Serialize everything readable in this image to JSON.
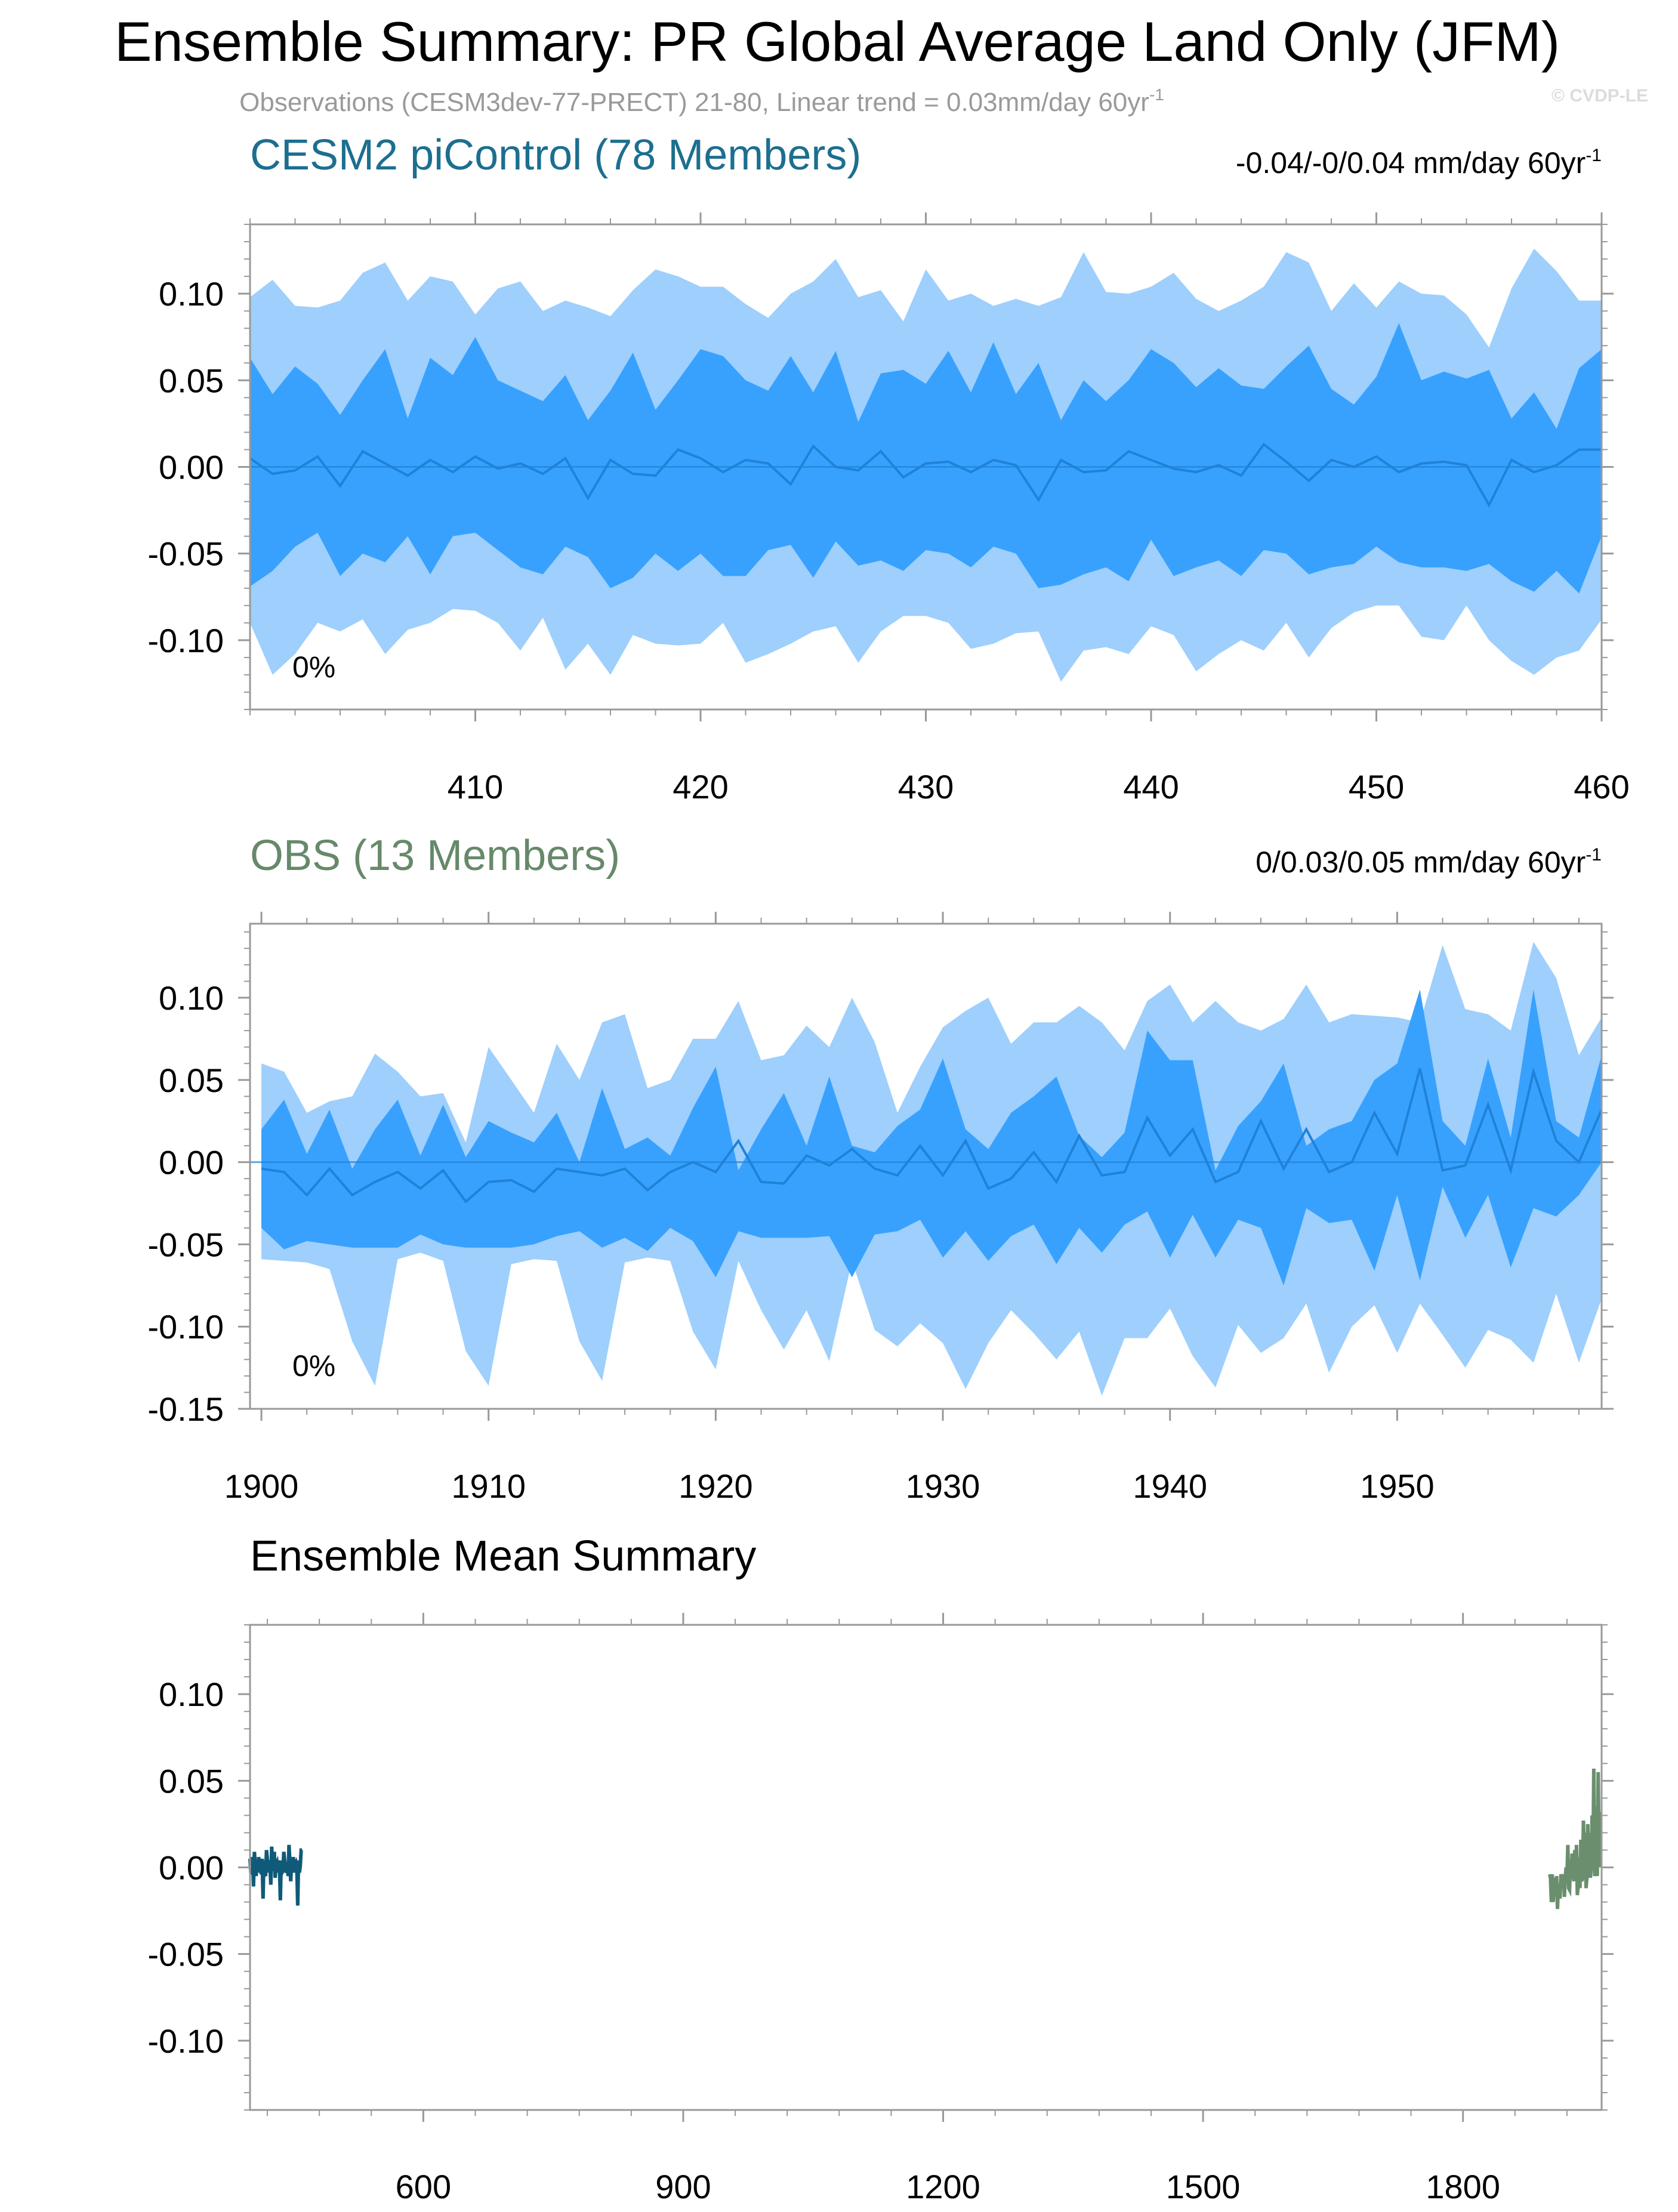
{
  "title": "Ensemble Summary: PR Global Average Land Only (JFM)",
  "subtitle": "Observations (CESM3dev-77-PRECT) 21-80, Linear trend = 0.03mm/day 60yr",
  "subtitle_sup": "-1",
  "watermark": "© CVDP-LE",
  "colors": {
    "outer_band": "#9ecffd",
    "inner_band": "#38a1fe",
    "mean_line": "#1f82d9",
    "zero_line": "#1f82d9",
    "cesm_title": "#1c6f8f",
    "obs_title": "#66896a",
    "cesm_mean": "#0f5a78",
    "obs_mean": "#6b8f6e",
    "axis": "#999999",
    "text": "#000000",
    "subtitle": "#9a9a9a"
  },
  "chart_data": [
    {
      "type": "area",
      "id": "cesm",
      "title": "CESM2 piControl (78 Members)",
      "trend_label": "-0.04/-0/0.04 mm/day 60yr",
      "trend_sup": "-1",
      "percent_label": "0%",
      "xlabel": "",
      "ylabel": "",
      "xlim": [
        400,
        460
      ],
      "ylim": [
        -0.14,
        0.14
      ],
      "x_ticks": [
        410,
        420,
        430,
        440,
        450,
        460
      ],
      "y_ticks": [
        0.1,
        0.05,
        0.0,
        -0.05,
        -0.1
      ],
      "y_tick_labels": [
        "0.10",
        "0.05",
        "0.00",
        "-0.05",
        "-0.10"
      ],
      "x": [
        400,
        401,
        402,
        403,
        404,
        405,
        406,
        407,
        408,
        409,
        410,
        411,
        412,
        413,
        414,
        415,
        416,
        417,
        418,
        419,
        420,
        421,
        422,
        423,
        424,
        425,
        426,
        427,
        428,
        429,
        430,
        431,
        432,
        433,
        434,
        435,
        436,
        437,
        438,
        439,
        440,
        441,
        442,
        443,
        444,
        445,
        446,
        447,
        448,
        449,
        450,
        451,
        452,
        453,
        454,
        455,
        456,
        457,
        458,
        459,
        460
      ],
      "series": [
        {
          "name": "max",
          "values": [
            0.098,
            0.108,
            0.093,
            0.092,
            0.096,
            0.112,
            0.118,
            0.096,
            0.11,
            0.107,
            0.088,
            0.103,
            0.107,
            0.09,
            0.096,
            0.092,
            0.087,
            0.102,
            0.114,
            0.11,
            0.104,
            0.104,
            0.094,
            0.086,
            0.1,
            0.107,
            0.12,
            0.098,
            0.102,
            0.084,
            0.114,
            0.096,
            0.1,
            0.093,
            0.097,
            0.093,
            0.098,
            0.124,
            0.101,
            0.1,
            0.104,
            0.112,
            0.097,
            0.09,
            0.096,
            0.104,
            0.124,
            0.118,
            0.09,
            0.106,
            0.092,
            0.107,
            0.1,
            0.099,
            0.088,
            0.069,
            0.103,
            0.126,
            0.113,
            0.096,
            0.096
          ]
        },
        {
          "name": "p90",
          "values": [
            0.063,
            0.042,
            0.058,
            0.048,
            0.03,
            0.05,
            0.068,
            0.028,
            0.063,
            0.053,
            0.075,
            0.05,
            0.044,
            0.038,
            0.053,
            0.027,
            0.044,
            0.066,
            0.033,
            0.05,
            0.068,
            0.064,
            0.05,
            0.044,
            0.064,
            0.043,
            0.067,
            0.026,
            0.054,
            0.056,
            0.048,
            0.067,
            0.043,
            0.072,
            0.042,
            0.06,
            0.027,
            0.05,
            0.038,
            0.05,
            0.068,
            0.06,
            0.046,
            0.057,
            0.047,
            0.045,
            0.058,
            0.07,
            0.045,
            0.036,
            0.052,
            0.083,
            0.05,
            0.055,
            0.051,
            0.056,
            0.028,
            0.043,
            0.022,
            0.057,
            0.068
          ]
        },
        {
          "name": "mean",
          "values": [
            0.005,
            -0.004,
            -0.002,
            0.006,
            -0.011,
            0.009,
            0.002,
            -0.005,
            0.004,
            -0.003,
            0.006,
            -0.001,
            0.002,
            -0.004,
            0.005,
            -0.018,
            0.004,
            -0.004,
            -0.005,
            0.01,
            0.005,
            -0.003,
            0.004,
            0.002,
            -0.01,
            0.012,
            0.0,
            -0.002,
            0.009,
            -0.006,
            0.002,
            0.003,
            -0.003,
            0.004,
            0.001,
            -0.019,
            0.004,
            -0.003,
            -0.002,
            0.009,
            0.004,
            -0.001,
            -0.003,
            0.001,
            -0.005,
            0.013,
            0.003,
            -0.008,
            0.004,
            0.0,
            0.006,
            -0.003,
            0.002,
            0.003,
            0.001,
            -0.022,
            0.004,
            -0.003,
            0.001,
            0.01,
            0.01
          ]
        },
        {
          "name": "p10",
          "values": [
            -0.069,
            -0.06,
            -0.046,
            -0.038,
            -0.063,
            -0.05,
            -0.055,
            -0.04,
            -0.062,
            -0.04,
            -0.038,
            -0.048,
            -0.058,
            -0.062,
            -0.046,
            -0.052,
            -0.07,
            -0.064,
            -0.05,
            -0.06,
            -0.05,
            -0.063,
            -0.063,
            -0.048,
            -0.045,
            -0.064,
            -0.043,
            -0.057,
            -0.054,
            -0.06,
            -0.048,
            -0.05,
            -0.058,
            -0.046,
            -0.05,
            -0.07,
            -0.068,
            -0.062,
            -0.058,
            -0.066,
            -0.042,
            -0.063,
            -0.058,
            -0.054,
            -0.063,
            -0.048,
            -0.05,
            -0.062,
            -0.058,
            -0.056,
            -0.046,
            -0.055,
            -0.058,
            -0.058,
            -0.06,
            -0.056,
            -0.066,
            -0.072,
            -0.06,
            -0.073,
            -0.04
          ]
        },
        {
          "name": "min",
          "values": [
            -0.09,
            -0.12,
            -0.108,
            -0.09,
            -0.095,
            -0.088,
            -0.108,
            -0.094,
            -0.09,
            -0.082,
            -0.083,
            -0.09,
            -0.106,
            -0.087,
            -0.117,
            -0.102,
            -0.12,
            -0.097,
            -0.102,
            -0.103,
            -0.102,
            -0.09,
            -0.113,
            -0.108,
            -0.102,
            -0.095,
            -0.092,
            -0.113,
            -0.095,
            -0.086,
            -0.086,
            -0.09,
            -0.105,
            -0.102,
            -0.096,
            -0.095,
            -0.124,
            -0.106,
            -0.104,
            -0.108,
            -0.092,
            -0.097,
            -0.118,
            -0.108,
            -0.1,
            -0.106,
            -0.09,
            -0.11,
            -0.093,
            -0.084,
            -0.08,
            -0.08,
            -0.098,
            -0.1,
            -0.08,
            -0.1,
            -0.112,
            -0.12,
            -0.11,
            -0.106,
            -0.088
          ]
        }
      ]
    },
    {
      "type": "area",
      "id": "obs",
      "title": "OBS (13 Members)",
      "trend_label": "0/0.03/0.05 mm/day 60yr",
      "trend_sup": "-1",
      "percent_label": "0%",
      "xlabel": "",
      "ylabel": "",
      "xlim": [
        1899.5,
        1959
      ],
      "ylim": [
        -0.15,
        0.145
      ],
      "x_ticks": [
        1900,
        1910,
        1920,
        1930,
        1940,
        1950
      ],
      "y_ticks": [
        0.1,
        0.05,
        0.0,
        -0.05,
        -0.1,
        -0.15
      ],
      "y_tick_labels": [
        "0.10",
        "0.05",
        "0.00",
        "-0.05",
        "-0.10",
        "-0.15"
      ],
      "x": [
        1900,
        1901,
        1902,
        1903,
        1904,
        1905,
        1906,
        1907,
        1908,
        1909,
        1910,
        1911,
        1912,
        1913,
        1914,
        1915,
        1916,
        1917,
        1918,
        1919,
        1920,
        1921,
        1922,
        1923,
        1924,
        1925,
        1926,
        1927,
        1928,
        1929,
        1930,
        1931,
        1932,
        1933,
        1934,
        1935,
        1936,
        1937,
        1938,
        1939,
        1940,
        1941,
        1942,
        1943,
        1944,
        1945,
        1946,
        1947,
        1948,
        1949,
        1950,
        1951,
        1952,
        1953,
        1954,
        1955,
        1956,
        1957,
        1958,
        1959
      ],
      "series": [
        {
          "name": "max",
          "values": [
            0.06,
            0.055,
            0.03,
            0.037,
            0.04,
            0.066,
            0.055,
            0.04,
            0.042,
            0.012,
            0.07,
            0.05,
            0.03,
            0.072,
            0.05,
            0.085,
            0.09,
            0.045,
            0.05,
            0.075,
            0.075,
            0.098,
            0.062,
            0.065,
            0.083,
            0.07,
            0.1,
            0.073,
            0.03,
            0.058,
            0.082,
            0.092,
            0.1,
            0.072,
            0.085,
            0.085,
            0.095,
            0.085,
            0.068,
            0.098,
            0.108,
            0.085,
            0.098,
            0.085,
            0.08,
            0.087,
            0.108,
            0.085,
            0.09,
            0.089,
            0.088,
            0.085,
            0.132,
            0.093,
            0.09,
            0.08,
            0.134,
            0.112,
            0.065,
            0.088
          ]
        },
        {
          "name": "p90",
          "values": [
            0.02,
            0.038,
            0.005,
            0.032,
            -0.004,
            0.02,
            0.038,
            0.004,
            0.035,
            0.003,
            0.025,
            0.018,
            0.012,
            0.03,
            0.0,
            0.045,
            0.008,
            0.015,
            0.004,
            0.033,
            0.058,
            -0.005,
            0.02,
            0.042,
            0.01,
            0.052,
            0.01,
            0.006,
            0.022,
            0.032,
            0.063,
            0.02,
            0.008,
            0.03,
            0.04,
            0.052,
            0.016,
            0.003,
            0.018,
            0.08,
            0.062,
            0.062,
            -0.005,
            0.022,
            0.037,
            0.06,
            0.01,
            0.02,
            0.025,
            0.05,
            0.06,
            0.105,
            0.025,
            0.01,
            0.063,
            0.015,
            0.105,
            0.025,
            0.015,
            0.065
          ]
        },
        {
          "name": "mean",
          "values": [
            -0.004,
            -0.006,
            -0.02,
            -0.004,
            -0.02,
            -0.012,
            -0.006,
            -0.016,
            -0.005,
            -0.024,
            -0.012,
            -0.011,
            -0.018,
            -0.004,
            -0.006,
            -0.008,
            -0.004,
            -0.017,
            -0.006,
            0.0,
            -0.006,
            0.013,
            -0.012,
            -0.013,
            0.004,
            -0.002,
            0.008,
            -0.004,
            -0.008,
            0.01,
            -0.008,
            0.013,
            -0.016,
            -0.01,
            0.006,
            -0.012,
            0.016,
            -0.008,
            -0.006,
            0.027,
            0.004,
            0.02,
            -0.012,
            -0.006,
            0.025,
            -0.004,
            0.02,
            -0.006,
            0.0,
            0.03,
            0.005,
            0.057,
            -0.005,
            -0.002,
            0.035,
            -0.005,
            0.055,
            0.013,
            0.0,
            0.032
          ]
        },
        {
          "name": "p10",
          "values": [
            -0.04,
            -0.053,
            -0.048,
            -0.05,
            -0.052,
            -0.052,
            -0.052,
            -0.044,
            -0.05,
            -0.052,
            -0.052,
            -0.052,
            -0.05,
            -0.045,
            -0.042,
            -0.052,
            -0.046,
            -0.054,
            -0.04,
            -0.048,
            -0.07,
            -0.042,
            -0.046,
            -0.046,
            -0.046,
            -0.045,
            -0.07,
            -0.044,
            -0.042,
            -0.035,
            -0.058,
            -0.042,
            -0.06,
            -0.045,
            -0.038,
            -0.062,
            -0.04,
            -0.055,
            -0.038,
            -0.03,
            -0.058,
            -0.032,
            -0.058,
            -0.035,
            -0.04,
            -0.075,
            -0.028,
            -0.037,
            -0.035,
            -0.066,
            -0.02,
            -0.072,
            -0.015,
            -0.046,
            -0.02,
            -0.064,
            -0.028,
            -0.033,
            -0.02,
            0.0
          ]
        },
        {
          "name": "min",
          "values": [
            -0.059,
            -0.06,
            -0.061,
            -0.065,
            -0.109,
            -0.136,
            -0.059,
            -0.055,
            -0.06,
            -0.115,
            -0.136,
            -0.062,
            -0.059,
            -0.06,
            -0.109,
            -0.133,
            -0.061,
            -0.058,
            -0.06,
            -0.103,
            -0.126,
            -0.06,
            -0.09,
            -0.114,
            -0.09,
            -0.121,
            -0.06,
            -0.102,
            -0.112,
            -0.098,
            -0.11,
            -0.138,
            -0.11,
            -0.09,
            -0.104,
            -0.12,
            -0.103,
            -0.142,
            -0.107,
            -0.107,
            -0.089,
            -0.118,
            -0.137,
            -0.099,
            -0.116,
            -0.107,
            -0.086,
            -0.128,
            -0.1,
            -0.087,
            -0.116,
            -0.086,
            -0.105,
            -0.125,
            -0.102,
            -0.108,
            -0.122,
            -0.08,
            -0.122,
            -0.083
          ]
        }
      ]
    },
    {
      "type": "line",
      "id": "summary",
      "title": "Ensemble Mean Summary",
      "xlabel": "",
      "ylabel": "",
      "xlim": [
        400,
        1960
      ],
      "ylim": [
        -0.14,
        0.14
      ],
      "x_ticks": [
        600,
        900,
        1200,
        1500,
        1800
      ],
      "y_ticks": [
        0.1,
        0.05,
        0.0,
        -0.05,
        -0.1
      ],
      "y_tick_labels": [
        "0.10",
        "0.05",
        "0.00",
        "-0.05",
        "-0.10"
      ],
      "series_ref": [
        "cesm:mean",
        "obs:mean"
      ]
    }
  ]
}
